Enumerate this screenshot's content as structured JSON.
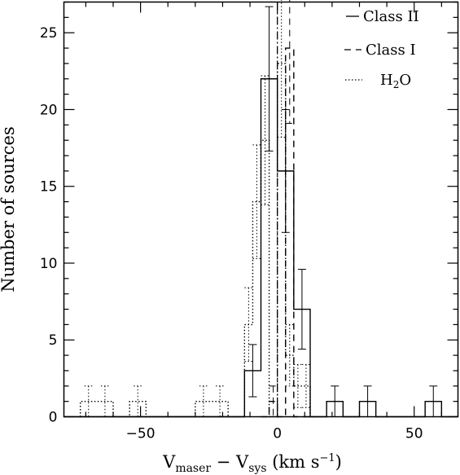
{
  "chart_data": {
    "type": "bar",
    "xlabel_main_1": "V",
    "xlabel_sub_1": "maser",
    "xlabel_mid": " − V",
    "xlabel_sub_2": "sys",
    "xlabel_unit": " (km s",
    "xlabel_exp": "−1",
    "xlabel_close": ")",
    "ylabel": "Number of sources",
    "xlim": [
      -78,
      66
    ],
    "ylim": [
      0,
      27
    ],
    "xticks": [
      -50,
      0,
      50
    ],
    "xtick_labels": [
      "−50",
      "0",
      "50"
    ],
    "yticks": [
      0,
      5,
      10,
      15,
      20,
      25
    ],
    "ytick_labels": [
      "0",
      "5",
      "10",
      "15",
      "20",
      "25"
    ],
    "grid": false,
    "legend_position": "top-right",
    "reference_line_x": 0,
    "series": [
      {
        "name": "Class II",
        "style": "solid",
        "color": "#000000",
        "bin_edges": [
          -78,
          -72,
          -66,
          -60,
          -54,
          -48,
          -42,
          -36,
          -30,
          -24,
          -18,
          -12,
          -6,
          0,
          6,
          12,
          18,
          24,
          30,
          36,
          42,
          48,
          54,
          60,
          66
        ],
        "counts": [
          0,
          0,
          0,
          0,
          0,
          0,
          0,
          0,
          0,
          0,
          0,
          3,
          22,
          16,
          7,
          0,
          1,
          0,
          1,
          0,
          0,
          0,
          1,
          0
        ],
        "errors": [
          0,
          0,
          0,
          0,
          0,
          0,
          0,
          0,
          0,
          0,
          0,
          1.7,
          4.7,
          4,
          2.6,
          0,
          1,
          0,
          1,
          0,
          0,
          0,
          1,
          0
        ]
      },
      {
        "name": "Class I",
        "style": "dashed",
        "color": "#000000",
        "bin_edges": [
          -6,
          -3,
          0,
          3,
          6,
          9,
          12
        ],
        "counts": [
          0,
          1,
          0,
          24,
          0,
          0
        ],
        "errors": [
          0,
          1,
          0,
          4.9,
          0,
          0
        ]
      },
      {
        "name": "H2O",
        "legend_main": "H",
        "legend_sub": "2",
        "legend_tail": "O",
        "style": "dotted",
        "color": "#000000",
        "bin_edges": [
          -72,
          -66,
          -60,
          -54,
          -48,
          -42,
          -36,
          -30,
          -24,
          -18,
          -12,
          -9,
          -6,
          -3,
          0,
          3,
          6,
          9,
          12,
          15
        ],
        "counts": [
          1,
          1,
          0,
          1,
          0,
          0,
          0,
          1,
          1,
          0,
          6,
          14,
          18,
          0,
          23,
          4,
          2,
          2,
          0
        ],
        "errors": [
          1,
          1,
          0,
          1,
          0,
          0,
          0,
          1,
          1,
          0,
          2.4,
          3.7,
          4.2,
          0,
          4.8,
          2,
          1.4,
          1.4,
          0
        ]
      }
    ]
  }
}
